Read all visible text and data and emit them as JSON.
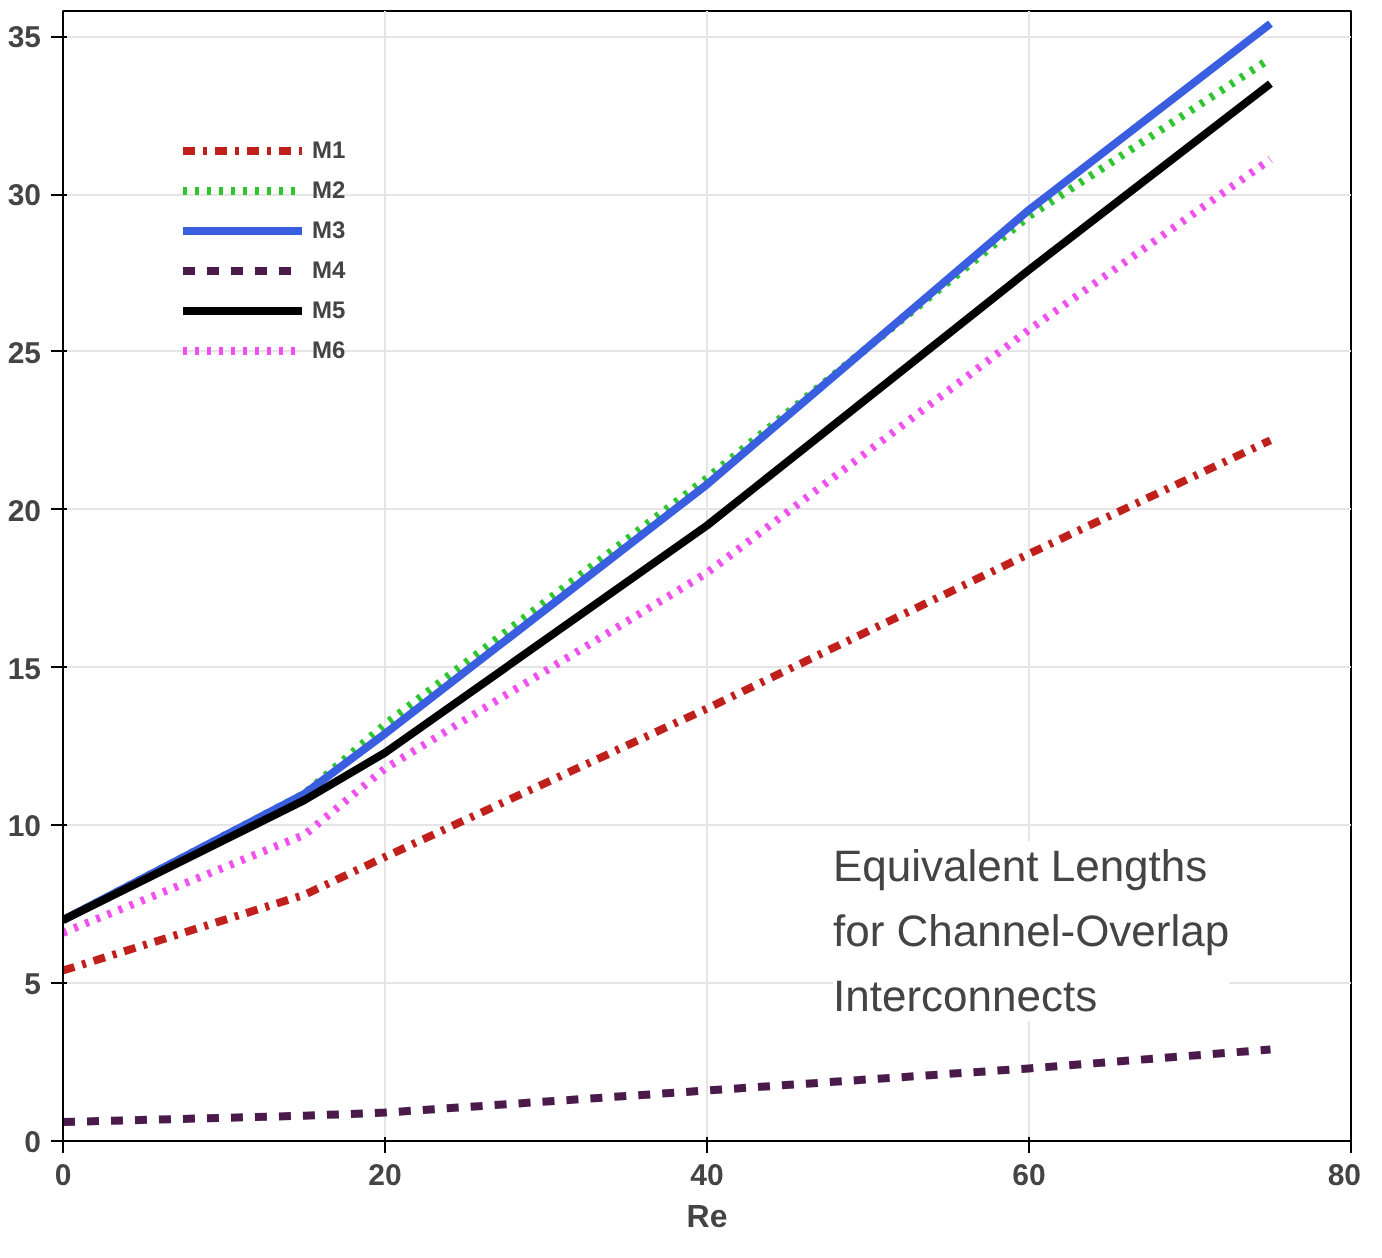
{
  "chart_data": {
    "type": "line",
    "xlabel": "Re",
    "x": [
      0,
      15,
      20,
      40,
      60,
      75
    ],
    "xlim": [
      0,
      80
    ],
    "ylim": [
      0,
      35.8
    ],
    "xticks": [
      0,
      20,
      40,
      60,
      80
    ],
    "yticks": [
      0,
      5,
      10,
      15,
      20,
      25,
      30,
      35
    ],
    "grid": true,
    "legend": "top left",
    "series": [
      {
        "name": "M1",
        "color": "#c0201c",
        "line_style": "dashdot",
        "values": [
          5.4,
          7.8,
          9,
          13.7,
          18.6,
          22.2
        ]
      },
      {
        "name": "M2",
        "color": "#2ec52e",
        "line_style": "dotted",
        "values": [
          7.0,
          11,
          13.2,
          21,
          29.3,
          34.3
        ]
      },
      {
        "name": "M3",
        "color": "#3a5ee0",
        "line_style": "solid",
        "values": [
          7.0,
          11,
          12.9,
          20.8,
          29.5,
          35.4
        ]
      },
      {
        "name": "M4",
        "color": "#4a1a4a",
        "line_style": "dashed",
        "values": [
          0.6,
          0.8,
          0.9,
          1.6,
          2.3,
          2.9
        ]
      },
      {
        "name": "M5",
        "color": "#000000",
        "line_style": "solid",
        "values": [
          7.0,
          10.8,
          12.3,
          19.5,
          27.6,
          33.5
        ]
      },
      {
        "name": "M6",
        "color": "#f050f0",
        "line_style": "dotted",
        "values": [
          6.6,
          9.7,
          11.8,
          18,
          25.7,
          31.1
        ]
      }
    ],
    "annotations": [
      "Equivalent Lengths\nfor Channel-Overlap\nInterconnects"
    ]
  }
}
